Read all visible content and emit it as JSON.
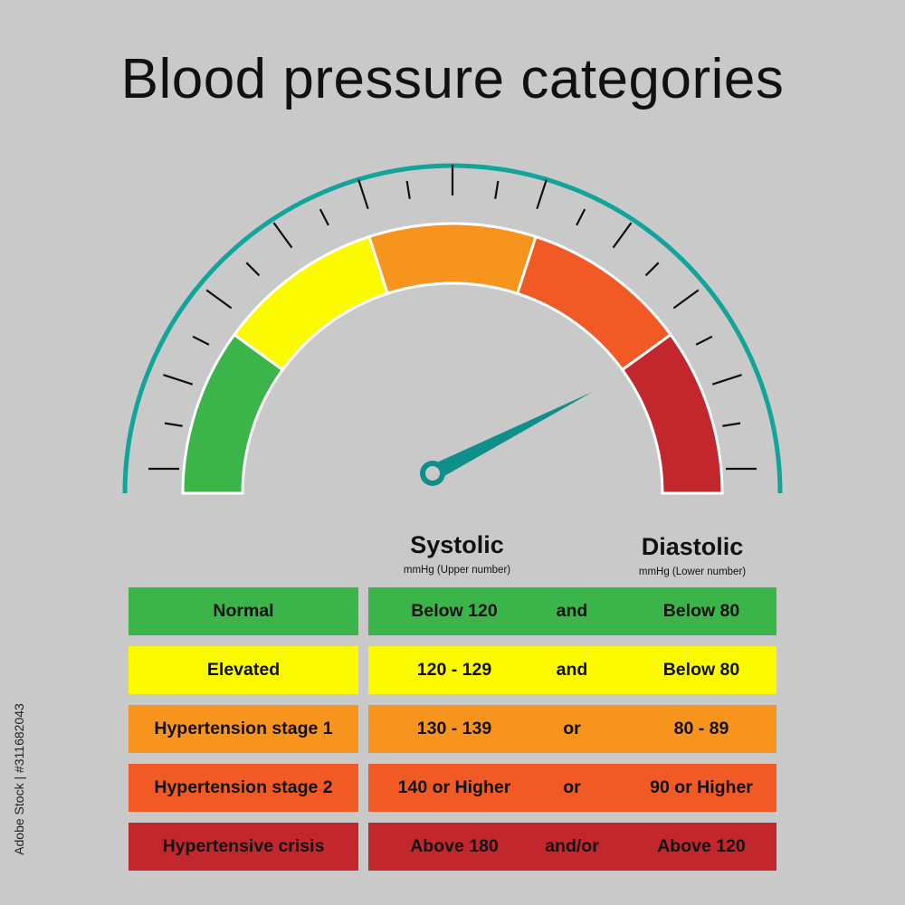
{
  "title": "Blood pressure categories",
  "colors": {
    "background": "#c9c9c9",
    "arc": "#10a49b",
    "needle": "#0f8f8a",
    "normal": "#3bb44a",
    "elevated": "#fbfa00",
    "stage1": "#f7941d",
    "stage2": "#f15a24",
    "crisis": "#c1272d"
  },
  "gauge": {
    "needle_level": 0.85,
    "segments": [
      "normal",
      "elevated",
      "stage1",
      "stage2",
      "crisis"
    ]
  },
  "columns": {
    "systolic": {
      "label": "Systolic",
      "sub": "mmHg (Upper number)"
    },
    "diastolic": {
      "label": "Diastolic",
      "sub": "mmHg (Lower number)"
    }
  },
  "rows": [
    {
      "category": "Normal",
      "systolic": "Below 120",
      "conj": "and",
      "diastolic": "Below 80",
      "color": "#3bb44a"
    },
    {
      "category": "Elevated",
      "systolic": "120 - 129",
      "conj": "and",
      "diastolic": "Below 80",
      "color": "#fbfa00"
    },
    {
      "category": "Hypertension stage 1",
      "systolic": "130 - 139",
      "conj": "or",
      "diastolic": "80 - 89",
      "color": "#f7941d"
    },
    {
      "category": "Hypertension stage 2",
      "systolic": "140 or Higher",
      "conj": "or",
      "diastolic": "90 or Higher",
      "color": "#f15a24"
    },
    {
      "category": "Hypertensive crisis",
      "systolic": "Above 180",
      "conj": "and/or",
      "diastolic": "Above 120",
      "color": "#c1272d"
    }
  ],
  "stock_id": "Adobe Stock | #311682043"
}
